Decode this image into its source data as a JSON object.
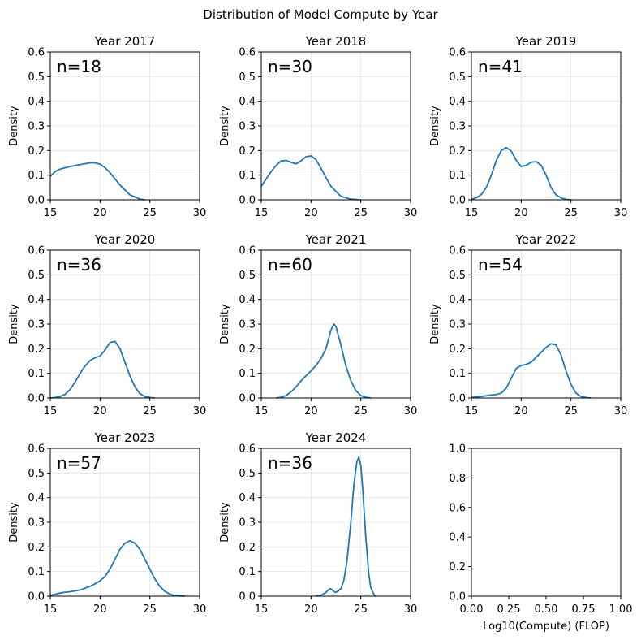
{
  "chart_data": {
    "type": "line",
    "title": "Distribution of Model Compute by Year",
    "xlabel": "Log10(Compute) (FLOP)",
    "series_color": "#1f77b4",
    "panels": [
      {
        "title": "Year 2017",
        "annotation": "n=18",
        "ylabel": "Density",
        "xlim": [
          15,
          30
        ],
        "ylim": [
          0,
          0.6
        ],
        "xticks": [
          "15",
          "20",
          "25",
          "30"
        ],
        "yticks": [
          "0.0",
          "0.1",
          "0.2",
          "0.3",
          "0.4",
          "0.5",
          "0.6"
        ],
        "x": [
          15,
          15.5,
          16,
          17,
          18,
          19,
          19.5,
          20,
          20.5,
          21,
          22,
          23,
          24,
          24.5
        ],
        "y": [
          0.095,
          0.115,
          0.125,
          0.135,
          0.143,
          0.15,
          0.15,
          0.145,
          0.13,
          0.11,
          0.06,
          0.02,
          0.003,
          0.0
        ]
      },
      {
        "title": "Year 2018",
        "annotation": "n=30",
        "ylabel": "Density",
        "xlim": [
          15,
          30
        ],
        "ylim": [
          0,
          0.6
        ],
        "xticks": [
          "15",
          "20",
          "25",
          "30"
        ],
        "yticks": [
          "0.0",
          "0.1",
          "0.2",
          "0.3",
          "0.4",
          "0.5",
          "0.6"
        ],
        "x": [
          15,
          15.5,
          16,
          16.5,
          17,
          17.5,
          18,
          18.5,
          19,
          19.5,
          20,
          20.5,
          21,
          21.5,
          22,
          23,
          24,
          25
        ],
        "y": [
          0.055,
          0.085,
          0.115,
          0.14,
          0.158,
          0.16,
          0.152,
          0.146,
          0.158,
          0.175,
          0.178,
          0.163,
          0.128,
          0.09,
          0.055,
          0.014,
          0.003,
          0.0
        ]
      },
      {
        "title": "Year 2019",
        "annotation": "n=41",
        "ylabel": "Density",
        "xlim": [
          15,
          30
        ],
        "ylim": [
          0,
          0.6
        ],
        "xticks": [
          "15",
          "20",
          "25",
          "30"
        ],
        "yticks": [
          "0.0",
          "0.1",
          "0.2",
          "0.3",
          "0.4",
          "0.5",
          "0.6"
        ],
        "x": [
          15,
          15.5,
          16,
          16.5,
          17,
          17.5,
          18,
          18.5,
          19,
          19.5,
          20,
          20.5,
          21,
          21.5,
          22,
          22.5,
          23,
          23.5,
          24,
          24.5,
          25
        ],
        "y": [
          0.002,
          0.008,
          0.022,
          0.05,
          0.1,
          0.16,
          0.2,
          0.212,
          0.198,
          0.16,
          0.135,
          0.14,
          0.152,
          0.155,
          0.14,
          0.1,
          0.05,
          0.02,
          0.008,
          0.002,
          0.0
        ]
      },
      {
        "title": "Year 2020",
        "annotation": "n=36",
        "ylabel": "Density",
        "xlim": [
          15,
          30
        ],
        "ylim": [
          0,
          0.6
        ],
        "xticks": [
          "15",
          "20",
          "25",
          "30"
        ],
        "yticks": [
          "0.0",
          "0.1",
          "0.2",
          "0.3",
          "0.4",
          "0.5",
          "0.6"
        ],
        "x": [
          15,
          15.5,
          16,
          16.5,
          17,
          17.5,
          18,
          18.5,
          19,
          19.5,
          20,
          20.5,
          21,
          21.5,
          22,
          22.5,
          23,
          23.5,
          24,
          24.5,
          25,
          25.5
        ],
        "y": [
          0.0,
          0.002,
          0.006,
          0.015,
          0.035,
          0.065,
          0.1,
          0.13,
          0.152,
          0.163,
          0.17,
          0.195,
          0.225,
          0.23,
          0.2,
          0.145,
          0.09,
          0.045,
          0.018,
          0.006,
          0.002,
          0.0
        ]
      },
      {
        "title": "Year 2021",
        "annotation": "n=60",
        "ylabel": "Density",
        "xlim": [
          15,
          30
        ],
        "ylim": [
          0,
          0.6
        ],
        "xticks": [
          "15",
          "20",
          "25",
          "30"
        ],
        "yticks": [
          "0.0",
          "0.1",
          "0.2",
          "0.3",
          "0.4",
          "0.5",
          "0.6"
        ],
        "x": [
          16.5,
          17,
          17.5,
          18,
          18.5,
          19,
          19.5,
          20,
          20.5,
          21,
          21.5,
          22,
          22.3,
          22.5,
          23,
          23.5,
          24,
          24.5,
          25,
          25.5,
          26
        ],
        "y": [
          0.0,
          0.003,
          0.01,
          0.025,
          0.045,
          0.07,
          0.09,
          0.11,
          0.132,
          0.16,
          0.2,
          0.275,
          0.3,
          0.29,
          0.215,
          0.13,
          0.07,
          0.03,
          0.01,
          0.003,
          0.0
        ]
      },
      {
        "title": "Year 2022",
        "annotation": "n=54",
        "ylabel": "Density",
        "xlim": [
          15,
          30
        ],
        "ylim": [
          0,
          0.6
        ],
        "xticks": [
          "15",
          "20",
          "25",
          "30"
        ],
        "yticks": [
          "0.0",
          "0.1",
          "0.2",
          "0.3",
          "0.4",
          "0.5",
          "0.6"
        ],
        "x": [
          15,
          16,
          17,
          17.5,
          18,
          18.5,
          19,
          19.5,
          20,
          20.5,
          21,
          21.5,
          22,
          22.5,
          23,
          23.5,
          24,
          24.5,
          25,
          25.5,
          26,
          26.5,
          27
        ],
        "y": [
          0.002,
          0.006,
          0.012,
          0.014,
          0.02,
          0.04,
          0.08,
          0.12,
          0.132,
          0.136,
          0.145,
          0.165,
          0.185,
          0.205,
          0.22,
          0.215,
          0.175,
          0.11,
          0.055,
          0.02,
          0.006,
          0.002,
          0.0
        ]
      },
      {
        "title": "Year 2023",
        "annotation": "n=57",
        "ylabel": "Density",
        "xlim": [
          15,
          30
        ],
        "ylim": [
          0,
          0.6
        ],
        "xticks": [
          "15",
          "20",
          "25",
          "30"
        ],
        "yticks": [
          "0.0",
          "0.1",
          "0.2",
          "0.3",
          "0.4",
          "0.5",
          "0.6"
        ],
        "x": [
          15,
          15.5,
          16,
          16.5,
          17,
          18,
          19,
          19.5,
          20,
          20.5,
          21,
          21.5,
          22,
          22.5,
          23,
          23.5,
          24,
          24.5,
          25,
          25.5,
          26,
          26.5,
          27,
          27.5,
          28,
          28.5
        ],
        "y": [
          0.003,
          0.008,
          0.013,
          0.016,
          0.018,
          0.025,
          0.04,
          0.05,
          0.062,
          0.08,
          0.11,
          0.15,
          0.19,
          0.215,
          0.225,
          0.215,
          0.19,
          0.15,
          0.11,
          0.07,
          0.04,
          0.02,
          0.008,
          0.003,
          0.001,
          0.0
        ]
      },
      {
        "title": "Year 2024",
        "annotation": "n=36",
        "ylabel": "Density",
        "xlim": [
          15,
          30
        ],
        "ylim": [
          0,
          0.6
        ],
        "xticks": [
          "15",
          "20",
          "25",
          "30"
        ],
        "yticks": [
          "0.0",
          "0.1",
          "0.2",
          "0.3",
          "0.4",
          "0.5",
          "0.6"
        ],
        "x": [
          20.5,
          21,
          21.5,
          21.8,
          22,
          22.2,
          22.5,
          23,
          23.3,
          23.6,
          24,
          24.3,
          24.6,
          24.8,
          25,
          25.2,
          25.5,
          25.8,
          26,
          26.3,
          26.5
        ],
        "y": [
          0.0,
          0.004,
          0.015,
          0.028,
          0.03,
          0.022,
          0.015,
          0.03,
          0.065,
          0.14,
          0.3,
          0.45,
          0.545,
          0.565,
          0.53,
          0.43,
          0.24,
          0.09,
          0.035,
          0.008,
          0.0
        ]
      },
      {
        "title": "",
        "annotation": "",
        "ylabel": "",
        "xlim": [
          0,
          1
        ],
        "ylim": [
          0,
          1
        ],
        "xticks": [
          "0.00",
          "0.25",
          "0.50",
          "0.75",
          "1.00"
        ],
        "yticks": [
          "0.0",
          "0.2",
          "0.4",
          "0.6",
          "0.8",
          "1.0"
        ],
        "xlabel": "Log10(Compute) (FLOP)",
        "x": [],
        "y": []
      }
    ]
  }
}
